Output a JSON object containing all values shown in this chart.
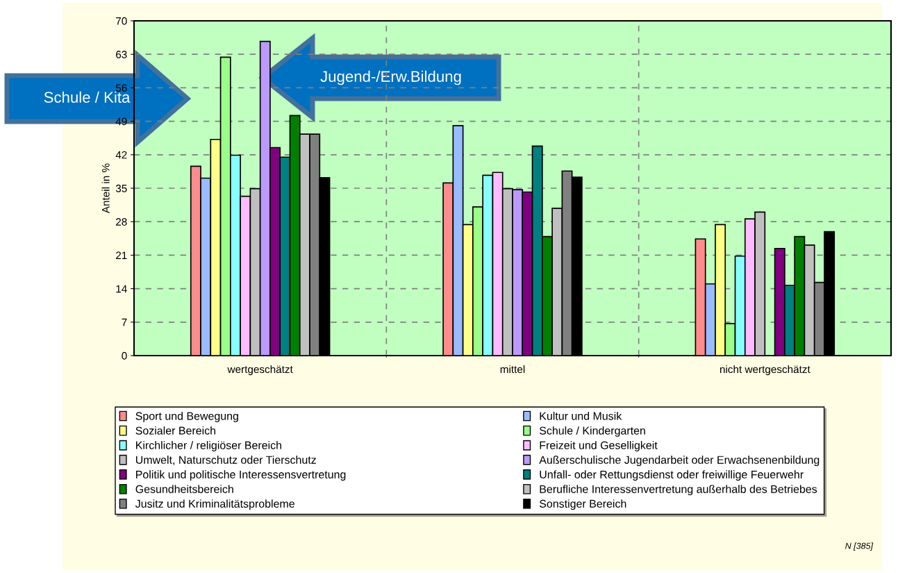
{
  "chart_data": {
    "type": "bar",
    "ylabel": "Anteil in %",
    "categories": [
      "wertgeschätzt",
      "mittel",
      "nicht wertgeschätzt"
    ],
    "ylim": [
      0,
      70
    ],
    "yticks": [
      0,
      7,
      14,
      21,
      28,
      35,
      42,
      49,
      56,
      63,
      70
    ],
    "grid": true,
    "legend": "bottom",
    "series": [
      {
        "name": "Sport und Bewegung",
        "color": "#ff8c8c",
        "values": [
          39.6,
          36.1,
          24.4
        ]
      },
      {
        "name": "Kultur und Musik",
        "color": "#99bbff",
        "values": [
          37.1,
          48.1,
          15.0
        ]
      },
      {
        "name": "Sozialer Bereich",
        "color": "#ffff88",
        "values": [
          45.2,
          27.4,
          27.4
        ]
      },
      {
        "name": "Schule / Kindergarten",
        "color": "#99ff88",
        "values": [
          62.4,
          31.1,
          6.7
        ]
      },
      {
        "name": "Kirchlicher / religiöser Bereich",
        "color": "#88ffff",
        "values": [
          41.9,
          37.7,
          20.8
        ]
      },
      {
        "name": "Freizeit und Geselligkeit",
        "color": "#ffbbff",
        "values": [
          33.3,
          38.3,
          28.6
        ]
      },
      {
        "name": "Umwelt, Naturschutz oder Tierschutz",
        "color": "#bfbfbf",
        "values": [
          34.9,
          34.9,
          30.0
        ]
      },
      {
        "name": "Außerschulische Jugendarbeit oder Erwachsenenbildung",
        "color": "#bb99ff",
        "values": [
          65.7,
          34.7,
          null
        ]
      },
      {
        "name": "Politik und politische Interessensvertretung",
        "color": "#800080",
        "values": [
          43.5,
          34.2,
          22.4
        ]
      },
      {
        "name": "Unfall- oder Rettungsdienst oder freiwillige Feuerwehr",
        "color": "#008080",
        "values": [
          41.5,
          43.8,
          14.7
        ]
      },
      {
        "name": "Gesundheitsbereich",
        "color": "#008000",
        "values": [
          50.2,
          24.9,
          24.9
        ]
      },
      {
        "name": "Berufliche Interessenvertretung außerhalb des Betriebes",
        "color": "#c0c0c0",
        "values": [
          46.3,
          30.8,
          23.1
        ]
      },
      {
        "name": "Jusitz und Kriminalitätsprobleme",
        "color": "#808080",
        "values": [
          46.3,
          38.6,
          15.3
        ]
      },
      {
        "name": "Sonstiger Bereich",
        "color": "#000000",
        "values": [
          37.2,
          37.3,
          25.9
        ]
      }
    ],
    "annotations": [
      "Schule / Kita",
      "Jugend-/Erw.Bildung",
      "N [385]"
    ]
  }
}
